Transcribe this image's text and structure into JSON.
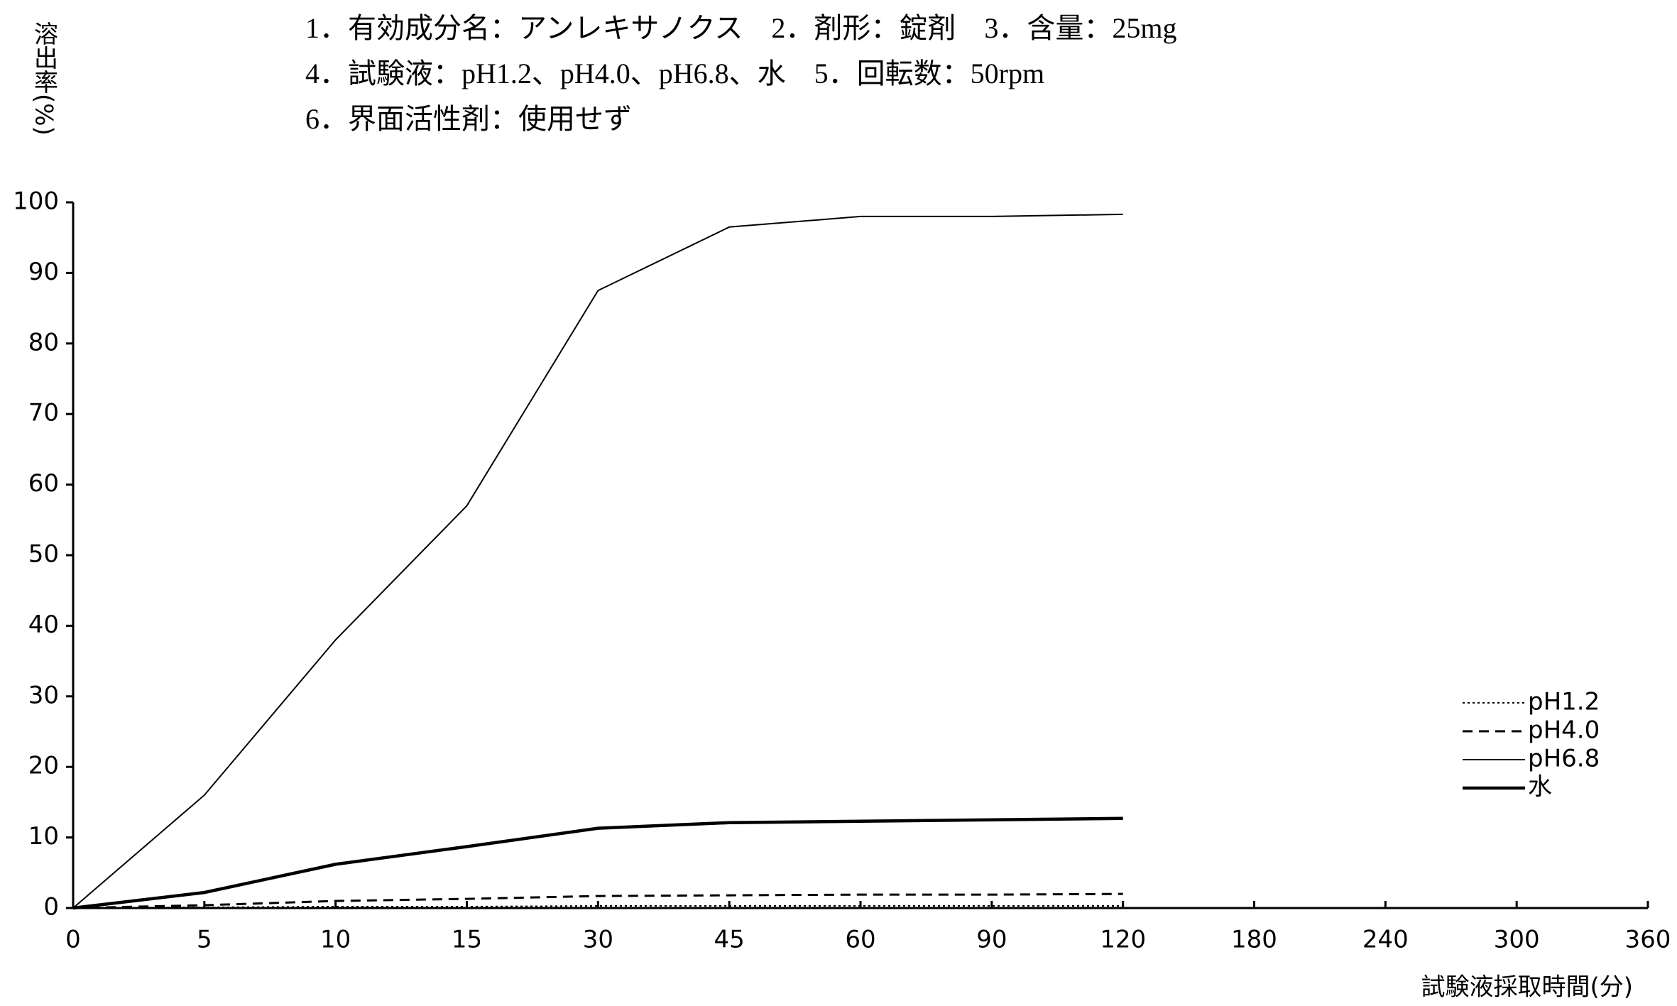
{
  "chart_data": {
    "type": "line",
    "title_lines": [
      "1．有効成分名：アンレキサノクス　2．剤形：錠剤　3．含量：25mg",
      "4．試験液：pH1.2、pH4.0、pH6.8、水　5．回転数：50rpm",
      "6．界面活性剤：使用せず"
    ],
    "y_label": "溶出率(%)",
    "x_label": "試験液採取時間(分)",
    "categories": [
      "0",
      "5",
      "10",
      "15",
      "30",
      "45",
      "60",
      "90",
      "120",
      "180",
      "240",
      "300",
      "360"
    ],
    "ylim": [
      0,
      100
    ],
    "yticks": [
      0,
      10,
      20,
      30,
      40,
      50,
      60,
      70,
      80,
      90,
      100
    ],
    "grid": false,
    "legend": "right",
    "series": [
      {
        "name": "pH1.2",
        "color": "#000000",
        "style": "dotted",
        "values": [
          0,
          0.1,
          0.2,
          0.2,
          0.3,
          0.3,
          0.3,
          0.3,
          0.3,
          null,
          null,
          null,
          null
        ]
      },
      {
        "name": "pH4.0",
        "color": "#000000",
        "style": "dashed",
        "values": [
          0,
          0.4,
          1.0,
          1.3,
          1.7,
          1.8,
          1.9,
          1.9,
          2.0,
          null,
          null,
          null,
          null
        ]
      },
      {
        "name": "pH6.8",
        "color": "#000000",
        "style": "thin",
        "values": [
          0,
          16,
          38,
          57,
          87.5,
          96.5,
          98,
          98,
          98.3,
          null,
          null,
          null,
          null
        ]
      },
      {
        "name": "水",
        "color": "#000000",
        "style": "thick",
        "values": [
          0,
          2.2,
          6.2,
          8.7,
          11.3,
          12.1,
          12.3,
          12.5,
          12.7,
          null,
          null,
          null,
          null
        ]
      }
    ]
  }
}
